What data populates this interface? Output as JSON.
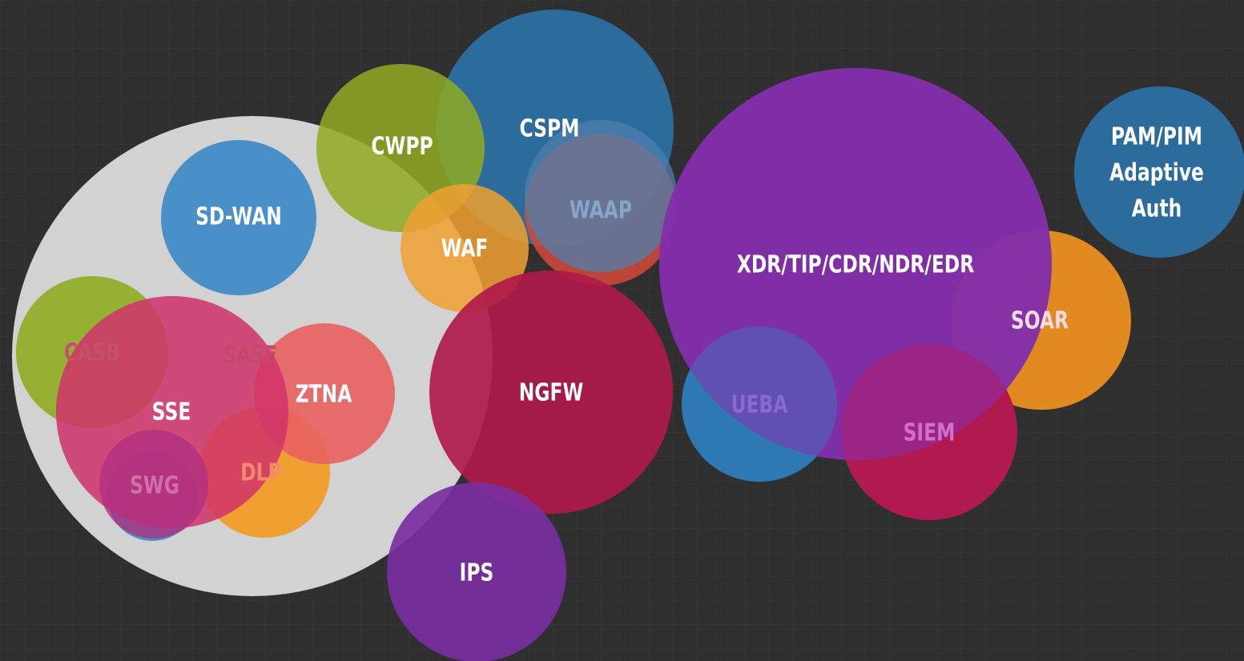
{
  "nodes": [
    {
      "label": "SASE"
    },
    {
      "label": "SD-WAN"
    },
    {
      "label": "CSPM"
    },
    {
      "label": "CWPP"
    },
    {
      "label": "WAAP"
    },
    {
      "label": "WAF"
    },
    {
      "label": "XDR/TIP/CDR/NDR/EDR"
    },
    {
      "lines": [
        "PAM/PIM",
        "Adaptive",
        "Auth"
      ]
    },
    {
      "label": "SOAR"
    },
    {
      "label": "CASB"
    },
    {
      "label": "SSE"
    },
    {
      "label": "ZTNA"
    },
    {
      "label": "DLP"
    },
    {
      "label": "SWG"
    },
    {
      "label": "NGFW"
    },
    {
      "label": "IPS"
    },
    {
      "label": "UEBA"
    },
    {
      "label": "SIEM"
    }
  ]
}
